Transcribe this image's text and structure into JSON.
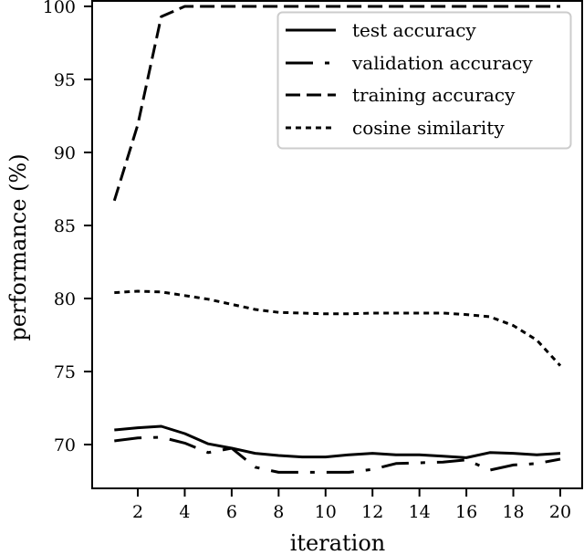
{
  "chart_data": {
    "type": "line",
    "title": "",
    "xlabel": "iteration",
    "ylabel": "performance (%)",
    "xlim": [
      0.1,
      20.9
    ],
    "ylim": [
      67.1,
      100.4
    ],
    "xticks": [
      2,
      4,
      6,
      8,
      10,
      12,
      14,
      16,
      18,
      20
    ],
    "yticks": [
      70,
      75,
      80,
      85,
      90,
      95,
      100
    ],
    "grid": false,
    "legend_position": "upper right",
    "x": [
      1,
      2,
      3,
      4,
      5,
      6,
      7,
      8,
      9,
      10,
      11,
      12,
      13,
      14,
      15,
      16,
      17,
      18,
      19,
      20
    ],
    "series": [
      {
        "name": "test accuracy",
        "style": "solid",
        "values": [
          71.0,
          71.15,
          71.25,
          70.75,
          70.05,
          69.75,
          69.4,
          69.25,
          69.15,
          69.15,
          69.3,
          69.4,
          69.3,
          69.3,
          69.2,
          69.1,
          69.45,
          69.4,
          69.3,
          69.4
        ]
      },
      {
        "name": "validation accuracy",
        "style": "dashdot",
        "values": [
          70.25,
          70.45,
          70.5,
          70.1,
          69.45,
          69.75,
          68.45,
          68.1,
          68.1,
          68.1,
          68.1,
          68.3,
          68.7,
          68.75,
          68.8,
          68.95,
          68.25,
          68.6,
          68.7,
          69.0
        ]
      },
      {
        "name": "training accuracy",
        "style": "dashed",
        "values": [
          86.7,
          91.9,
          99.3,
          100.0,
          100.0,
          100.0,
          100.0,
          100.0,
          100.0,
          100.0,
          100.0,
          100.0,
          100.0,
          100.0,
          100.0,
          100.0,
          100.0,
          100.0,
          100.0,
          100.0
        ]
      },
      {
        "name": "cosine similarity",
        "style": "dotted",
        "values": [
          80.4,
          80.5,
          80.45,
          80.2,
          79.95,
          79.6,
          79.25,
          79.05,
          79.0,
          78.95,
          78.95,
          79.0,
          79.0,
          79.0,
          79.0,
          78.9,
          78.75,
          78.15,
          77.15,
          75.4
        ]
      }
    ]
  },
  "legend": {
    "items": [
      {
        "label": "test accuracy"
      },
      {
        "label": "validation accuracy"
      },
      {
        "label": "training accuracy"
      },
      {
        "label": "cosine similarity"
      }
    ]
  },
  "axes": {
    "xlabel": "iteration",
    "ylabel": "performance (%)",
    "xtick_labels": [
      "2",
      "4",
      "6",
      "8",
      "10",
      "12",
      "14",
      "16",
      "18",
      "20"
    ],
    "ytick_labels": [
      "70",
      "75",
      "80",
      "85",
      "90",
      "95",
      "100"
    ]
  },
  "colors": {
    "line": "#000000",
    "legend_border": "#cccccc",
    "background": "#ffffff"
  }
}
